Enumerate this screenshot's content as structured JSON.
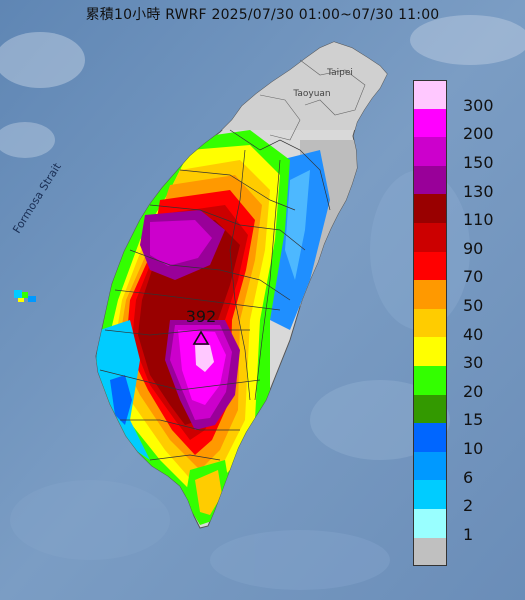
{
  "title": "累積10小時 RWRF 2025/07/30 01:00~07/30 11:00",
  "map_labels": {
    "strait": "Formosa Strait",
    "taipei": "Taipei",
    "taoyuan": "Taoyuan",
    "max_value": "392"
  },
  "legend": {
    "levels": [
      {
        "label": "300",
        "color": "#ffc8ff"
      },
      {
        "label": "200",
        "color": "#ff00ff"
      },
      {
        "label": "150",
        "color": "#cc00cc"
      },
      {
        "label": "130",
        "color": "#990099"
      },
      {
        "label": "110",
        "color": "#990000"
      },
      {
        "label": "90",
        "color": "#cc0000"
      },
      {
        "label": "70",
        "color": "#ff0000"
      },
      {
        "label": "50",
        "color": "#ff9900"
      },
      {
        "label": "40",
        "color": "#ffcc00"
      },
      {
        "label": "30",
        "color": "#ffff00"
      },
      {
        "label": "20",
        "color": "#33ff00"
      },
      {
        "label": "15",
        "color": "#339900"
      },
      {
        "label": "10",
        "color": "#0066ff"
      },
      {
        "label": "6",
        "color": "#0099ff"
      },
      {
        "label": "2",
        "color": "#00ccff"
      },
      {
        "label": "1",
        "color": "#99ffff"
      },
      {
        "label": "",
        "color": "#c0c0c0"
      }
    ]
  }
}
